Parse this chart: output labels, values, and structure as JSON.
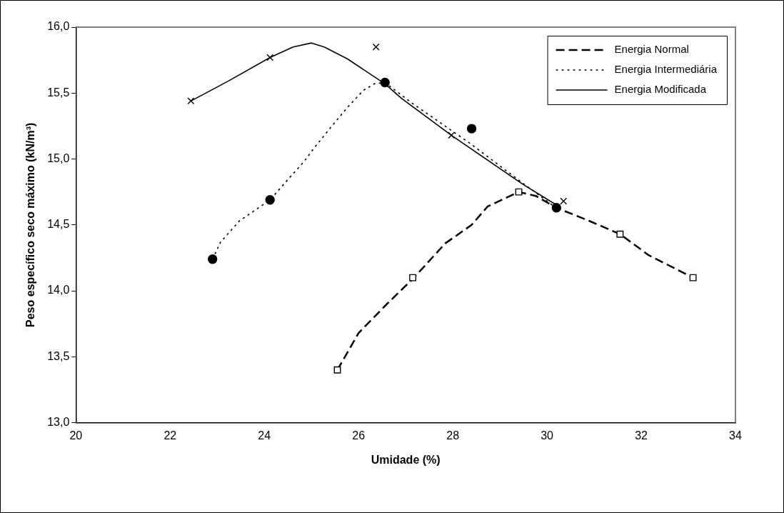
{
  "chart_data": {
    "type": "line",
    "xlabel": "Umidade (%)",
    "ylabel": "Peso específico seco máximo (kN/m³)",
    "xlim": [
      20,
      34
    ],
    "xticks": [
      20,
      22,
      24,
      26,
      28,
      30,
      32,
      34
    ],
    "ylim": [
      13,
      16
    ],
    "yticks": [
      {
        "value": 13,
        "label": "13,0"
      },
      {
        "value": 13.5,
        "label": "13,5"
      },
      {
        "value": 14,
        "label": "14,0"
      },
      {
        "value": 14.5,
        "label": "14,5"
      },
      {
        "value": 15,
        "label": "15,0"
      },
      {
        "value": 15.5,
        "label": "15,5"
      },
      {
        "value": 16,
        "label": "16,0"
      }
    ],
    "grid": false,
    "legend": "top right",
    "series": [
      {
        "name": "Energia Normal",
        "color": "#000000",
        "line_style": "dashed",
        "marker": "none",
        "x": [
          25.55,
          26.0,
          26.6,
          27.15,
          27.84,
          28.4,
          28.74,
          29.4,
          29.76,
          30.2,
          30.9,
          31.55,
          32.16,
          33.1
        ],
        "values": [
          13.4,
          13.68,
          13.9,
          14.09,
          14.36,
          14.5,
          14.64,
          14.75,
          14.72,
          14.63,
          14.53,
          14.43,
          14.27,
          14.1
        ]
      },
      {
        "name": "Energia Intermediária",
        "color": "#000000",
        "line_style": "dotted",
        "marker": "none",
        "x": [
          22.9,
          23.07,
          23.47,
          24.12,
          24.49,
          24.84,
          25.07,
          25.41,
          25.76,
          26.1,
          26.33,
          26.56,
          27.11,
          28.36,
          29.4,
          30.15
        ],
        "values": [
          14.24,
          14.37,
          14.53,
          14.69,
          14.84,
          14.98,
          15.09,
          15.24,
          15.39,
          15.52,
          15.57,
          15.58,
          15.43,
          15.12,
          14.84,
          14.64
        ]
      },
      {
        "name": "Energia Modificada",
        "color": "#000000",
        "line_style": "solid",
        "marker": "none",
        "x": [
          22.44,
          23.23,
          24.12,
          24.61,
          25.0,
          25.27,
          25.76,
          26.56,
          26.91,
          27.97,
          29.48,
          30.25
        ],
        "values": [
          15.44,
          15.59,
          15.77,
          15.85,
          15.88,
          15.85,
          15.76,
          15.57,
          15.46,
          15.18,
          14.81,
          14.64
        ]
      },
      {
        "type": "scatter",
        "color": "#000000",
        "marker": "square",
        "x": [
          25.55,
          27.15,
          29.4,
          31.55,
          33.1
        ],
        "values": [
          13.4,
          14.1,
          14.75,
          14.43,
          14.1
        ]
      },
      {
        "type": "scatter",
        "color": "#000000",
        "marker": "circle",
        "x": [
          22.9,
          24.12,
          26.56,
          28.4,
          30.2
        ],
        "values": [
          14.24,
          14.69,
          15.58,
          15.23,
          14.63
        ]
      },
      {
        "type": "scatter",
        "color": "#000000",
        "marker": "cross",
        "x": [
          22.44,
          24.12,
          26.37,
          27.97,
          30.35
        ],
        "values": [
          15.44,
          15.77,
          15.85,
          15.18,
          14.68
        ]
      }
    ]
  }
}
